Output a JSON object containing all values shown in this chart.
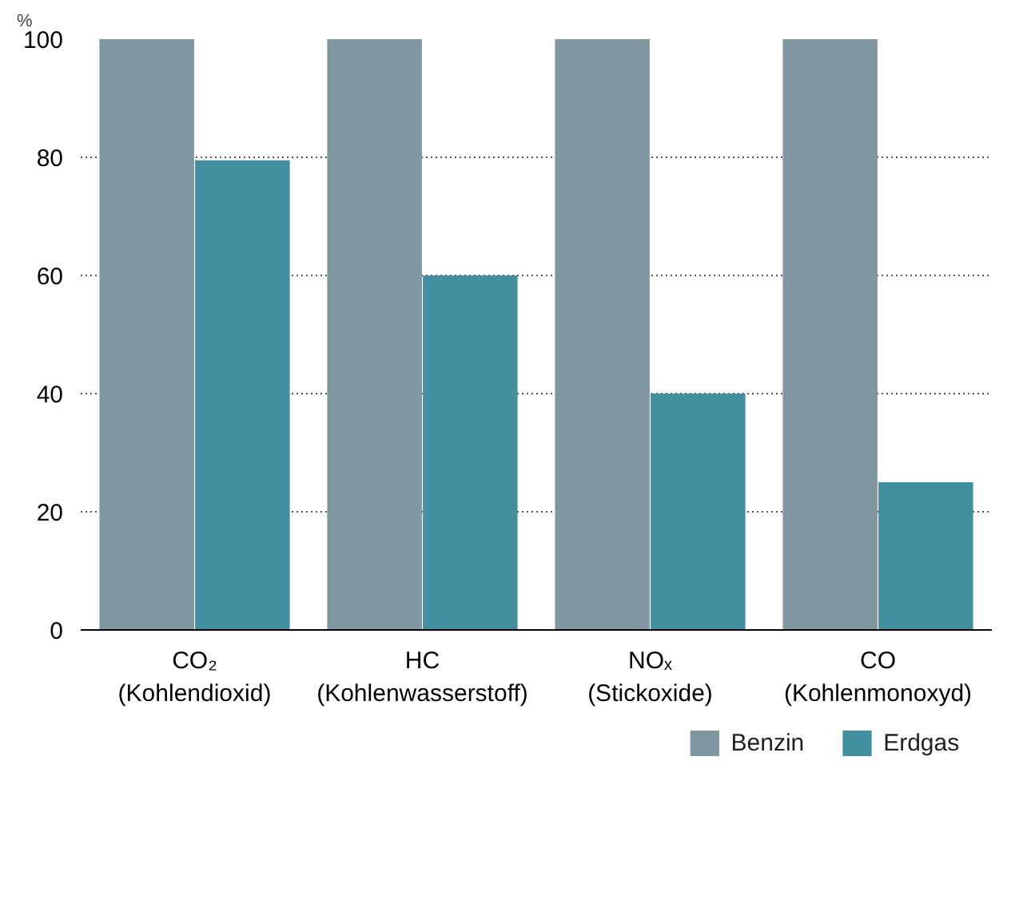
{
  "chart_data": {
    "type": "bar",
    "ylabel": "%",
    "categories": [
      "CO₂\n(Kohlendioxid)",
      "HC\n(Kohlenwasserstoff)",
      "NOₓ\n(Stickoxide)",
      "CO\n(Kohlenmonoxyd)"
    ],
    "series": [
      {
        "name": "Benzin",
        "color": "#8096a0",
        "values": [
          100,
          100,
          100,
          100
        ]
      },
      {
        "name": "Erdgas",
        "color": "#448f9f",
        "values": [
          79.5,
          60,
          40,
          25
        ]
      }
    ],
    "ylim": [
      0,
      100
    ],
    "yticks": [
      0,
      20,
      40,
      60,
      80,
      100
    ],
    "grid": "y",
    "legend": "bottom right"
  }
}
